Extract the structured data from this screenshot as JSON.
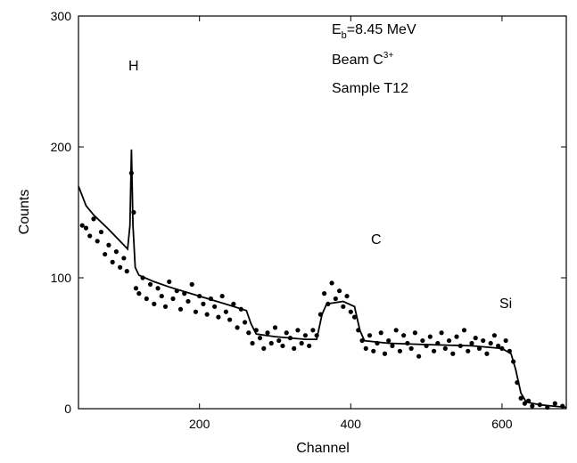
{
  "chart_data": {
    "type": "scatter",
    "x_label": "Channel",
    "y_label": "Counts",
    "xlim": [
      40,
      685
    ],
    "ylim": [
      0,
      300
    ],
    "xticks": [
      200,
      400,
      600
    ],
    "yticks": [
      0,
      100,
      200,
      300
    ],
    "energy_label": [
      "E",
      "b",
      "=8.45 MeV"
    ],
    "beam_label": [
      "Beam C",
      "3+"
    ],
    "sample_label": "Sample T12",
    "peak_labels": [
      "H",
      "C",
      "Si"
    ],
    "series": [
      {
        "kind": "points",
        "color": "#000",
        "x": [
          45,
          50,
          55,
          60,
          65,
          70,
          75,
          80,
          85,
          90,
          95,
          100,
          104,
          110,
          113,
          116,
          120,
          125,
          130,
          135,
          140,
          145,
          150,
          155,
          160,
          165,
          170,
          175,
          180,
          185,
          190,
          195,
          200,
          205,
          210,
          215,
          220,
          225,
          230,
          235,
          240,
          245,
          250,
          255,
          260,
          265,
          270,
          275,
          280,
          285,
          290,
          295,
          300,
          305,
          310,
          315,
          320,
          325,
          330,
          335,
          340,
          345,
          350,
          355,
          360,
          365,
          370,
          375,
          380,
          385,
          390,
          395,
          400,
          405,
          410,
          415,
          420,
          425,
          430,
          435,
          440,
          445,
          450,
          455,
          460,
          465,
          470,
          475,
          480,
          485,
          490,
          495,
          500,
          505,
          510,
          515,
          520,
          525,
          530,
          535,
          540,
          545,
          550,
          555,
          560,
          565,
          570,
          575,
          580,
          585,
          590,
          595,
          600,
          605,
          610,
          615,
          620,
          625,
          630,
          635,
          640,
          650,
          660,
          670,
          680
        ],
        "values": [
          140,
          138,
          132,
          145,
          128,
          135,
          118,
          125,
          112,
          120,
          108,
          115,
          105,
          180,
          150,
          92,
          88,
          100,
          84,
          95,
          80,
          92,
          86,
          78,
          97,
          84,
          90,
          76,
          88,
          82,
          95,
          74,
          86,
          80,
          72,
          84,
          78,
          70,
          86,
          74,
          68,
          80,
          62,
          76,
          66,
          58,
          50,
          60,
          54,
          46,
          58,
          50,
          62,
          52,
          48,
          58,
          54,
          46,
          60,
          50,
          56,
          48,
          60,
          56,
          72,
          88,
          80,
          96,
          84,
          90,
          78,
          86,
          74,
          70,
          60,
          52,
          46,
          56,
          44,
          50,
          58,
          42,
          52,
          48,
          60,
          44,
          56,
          50,
          46,
          58,
          40,
          52,
          48,
          55,
          44,
          50,
          58,
          46,
          52,
          42,
          55,
          48,
          60,
          44,
          50,
          54,
          46,
          52,
          42,
          50,
          56,
          48,
          46,
          52,
          44,
          36,
          20,
          8,
          4,
          6,
          2,
          3,
          1,
          4,
          2
        ]
      },
      {
        "kind": "line",
        "color": "#000",
        "x": [
          40,
          50,
          60,
          80,
          100,
          105,
          108,
          110,
          112,
          115,
          120,
          140,
          160,
          200,
          240,
          262,
          268,
          275,
          300,
          340,
          355,
          362,
          368,
          390,
          405,
          412,
          418,
          450,
          500,
          560,
          600,
          612,
          618,
          625,
          632,
          650,
          685
        ],
        "values": [
          170,
          155,
          148,
          137,
          125,
          122,
          140,
          198,
          140,
          108,
          102,
          97,
          93,
          86,
          79,
          75,
          65,
          57,
          55,
          53,
          53,
          72,
          80,
          82,
          78,
          60,
          52,
          50,
          49,
          48,
          46,
          42,
          30,
          12,
          5,
          3,
          1
        ]
      }
    ]
  }
}
